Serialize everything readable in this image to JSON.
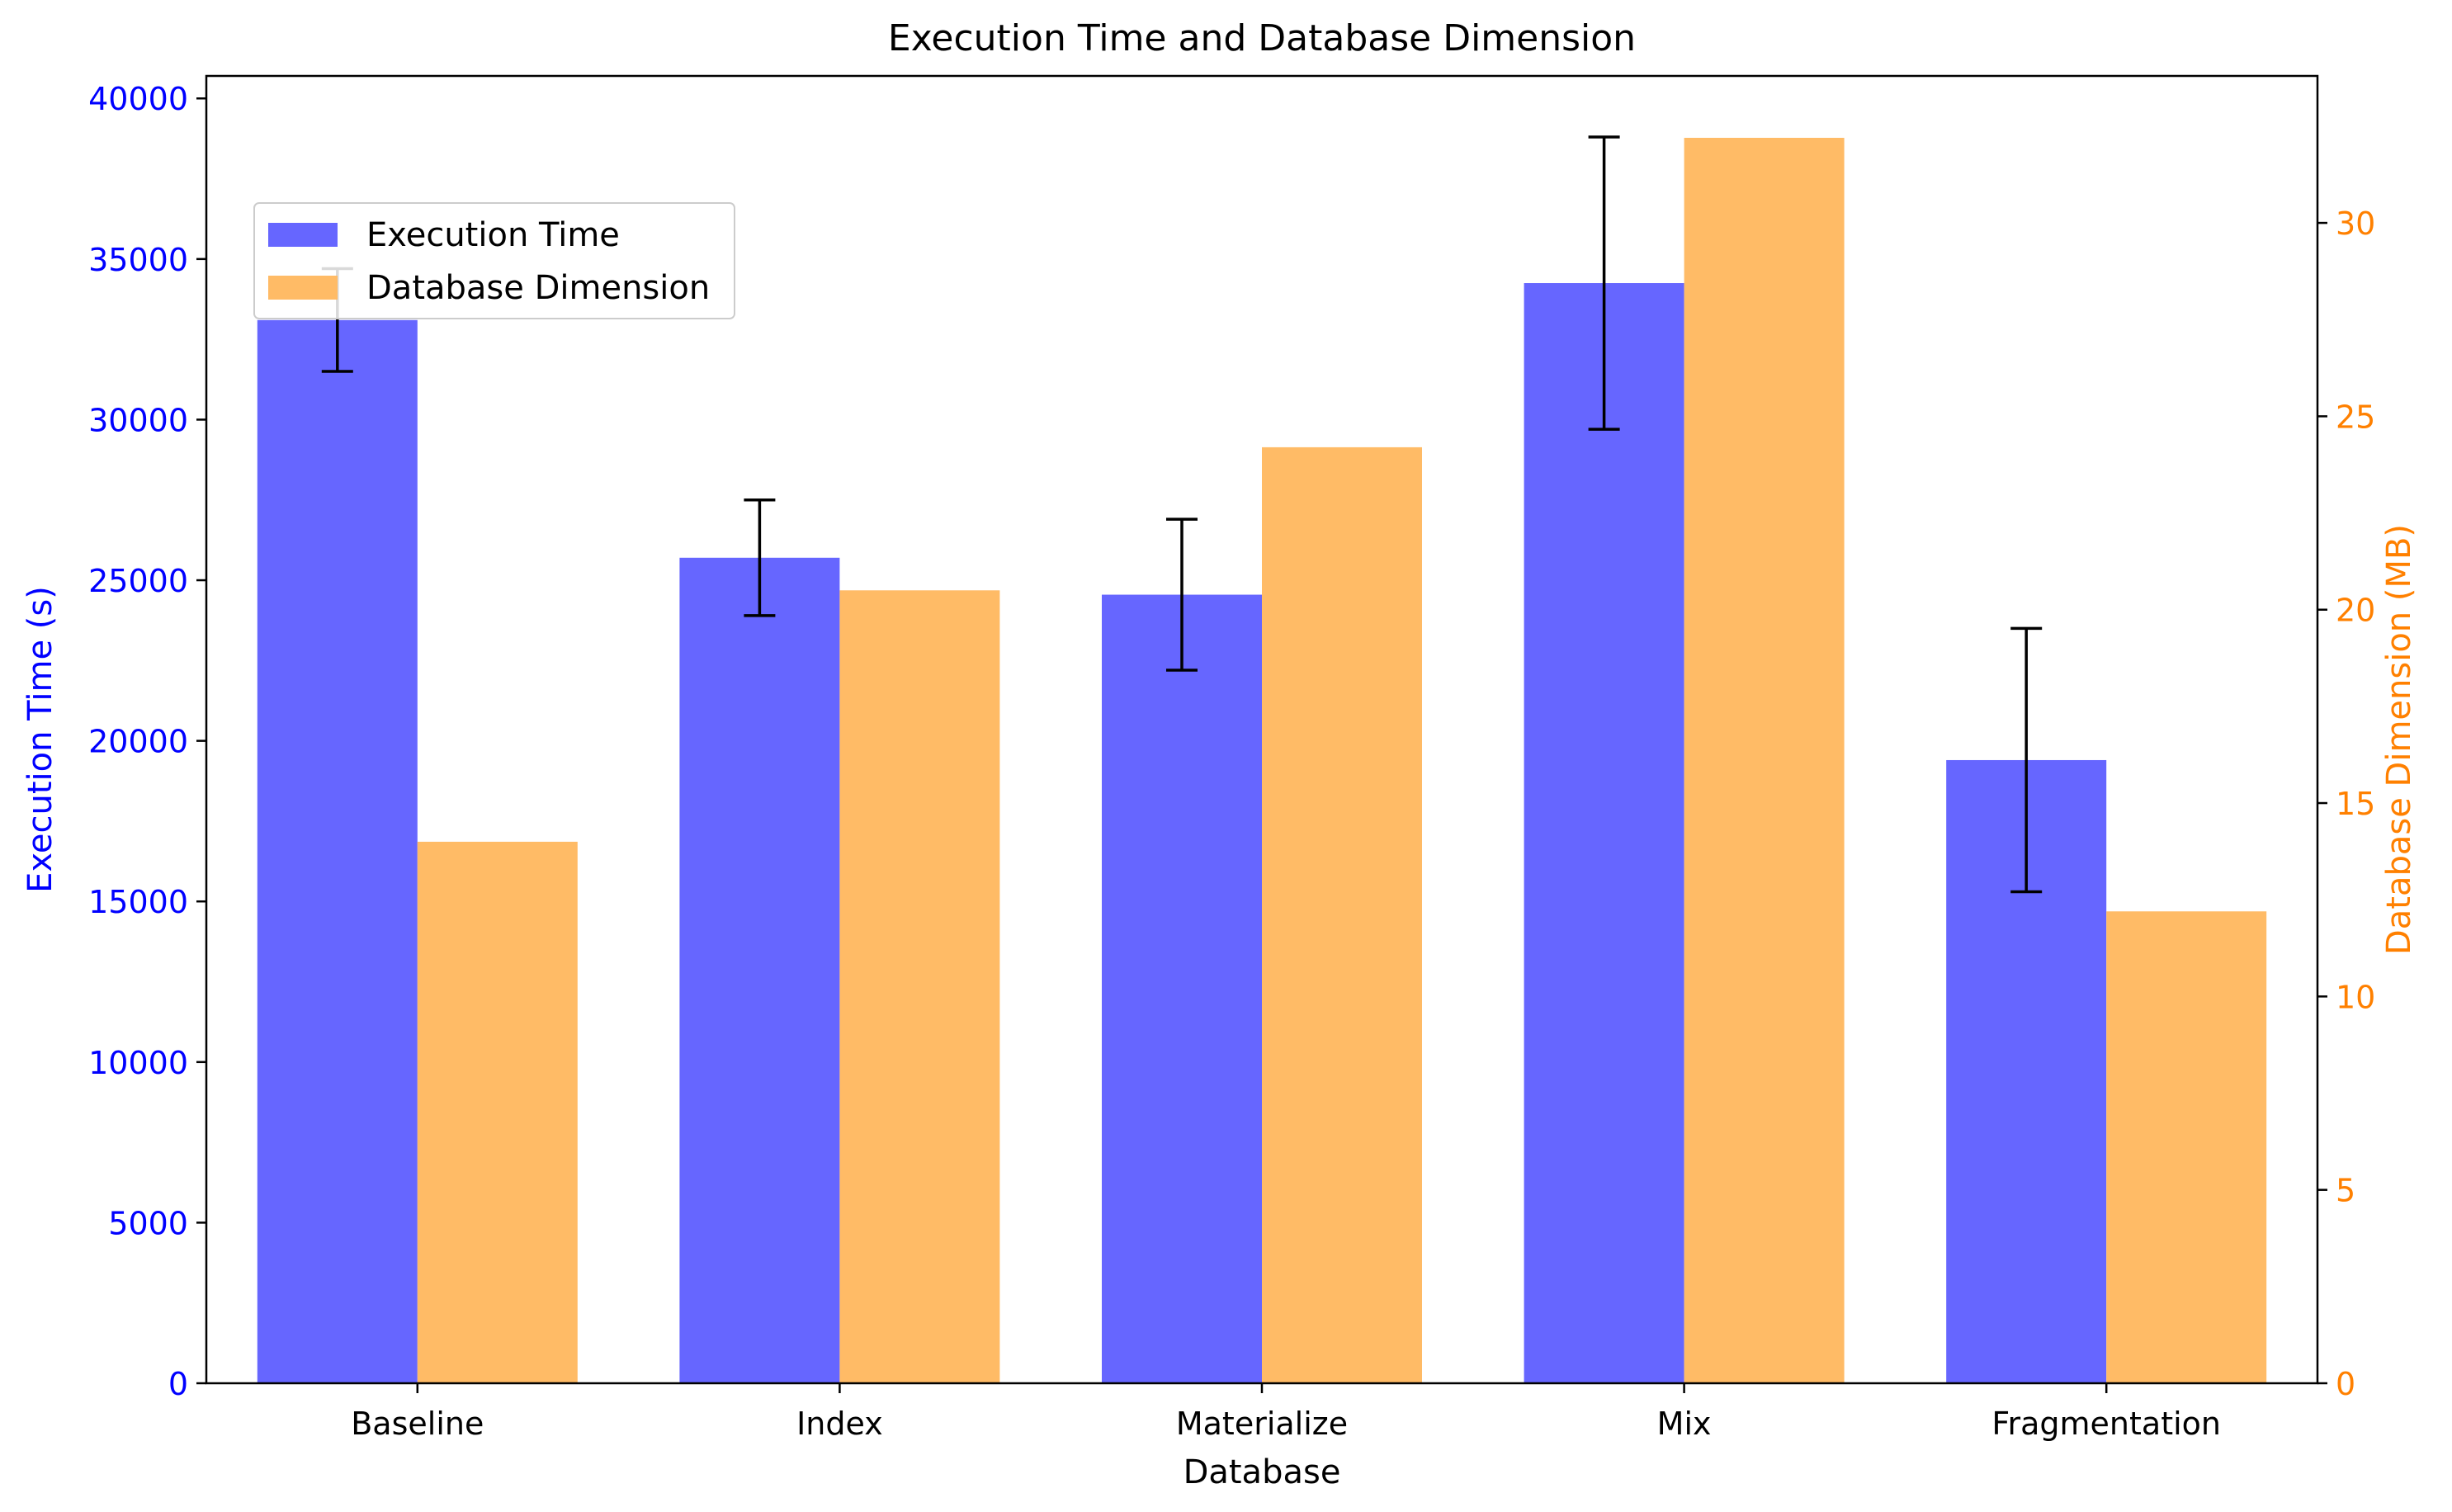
{
  "chart_data": {
    "type": "bar",
    "title": "Execution Time and Database Dimension",
    "xlabel": "Database",
    "categories": [
      "Baseline",
      "Index",
      "Materialize",
      "Mix",
      "Fragmentation"
    ],
    "y_left": {
      "label": "Execution Time (s)",
      "ylim": [
        0,
        40700
      ],
      "ticks": [
        0,
        5000,
        10000,
        15000,
        20000,
        25000,
        30000,
        35000,
        40000
      ],
      "color": "#0000ff"
    },
    "y_right": {
      "label": "Database Dimension (MB)",
      "ylim": [
        0,
        33.8
      ],
      "ticks": [
        0,
        5,
        10,
        15,
        20,
        25,
        30
      ],
      "color": "#ff8000"
    },
    "series": [
      {
        "name": "Execution Time",
        "axis": "left",
        "color": "#6666ff",
        "values": [
          33100,
          25700,
          24550,
          34250,
          19400
        ],
        "error": [
          1600,
          1800,
          2350,
          4550,
          4100
        ]
      },
      {
        "name": "Database Dimension",
        "axis": "right",
        "color": "#ffbb66",
        "values": [
          14.0,
          20.5,
          24.2,
          32.2,
          12.2
        ]
      }
    ],
    "legend_position": "upper-left"
  }
}
